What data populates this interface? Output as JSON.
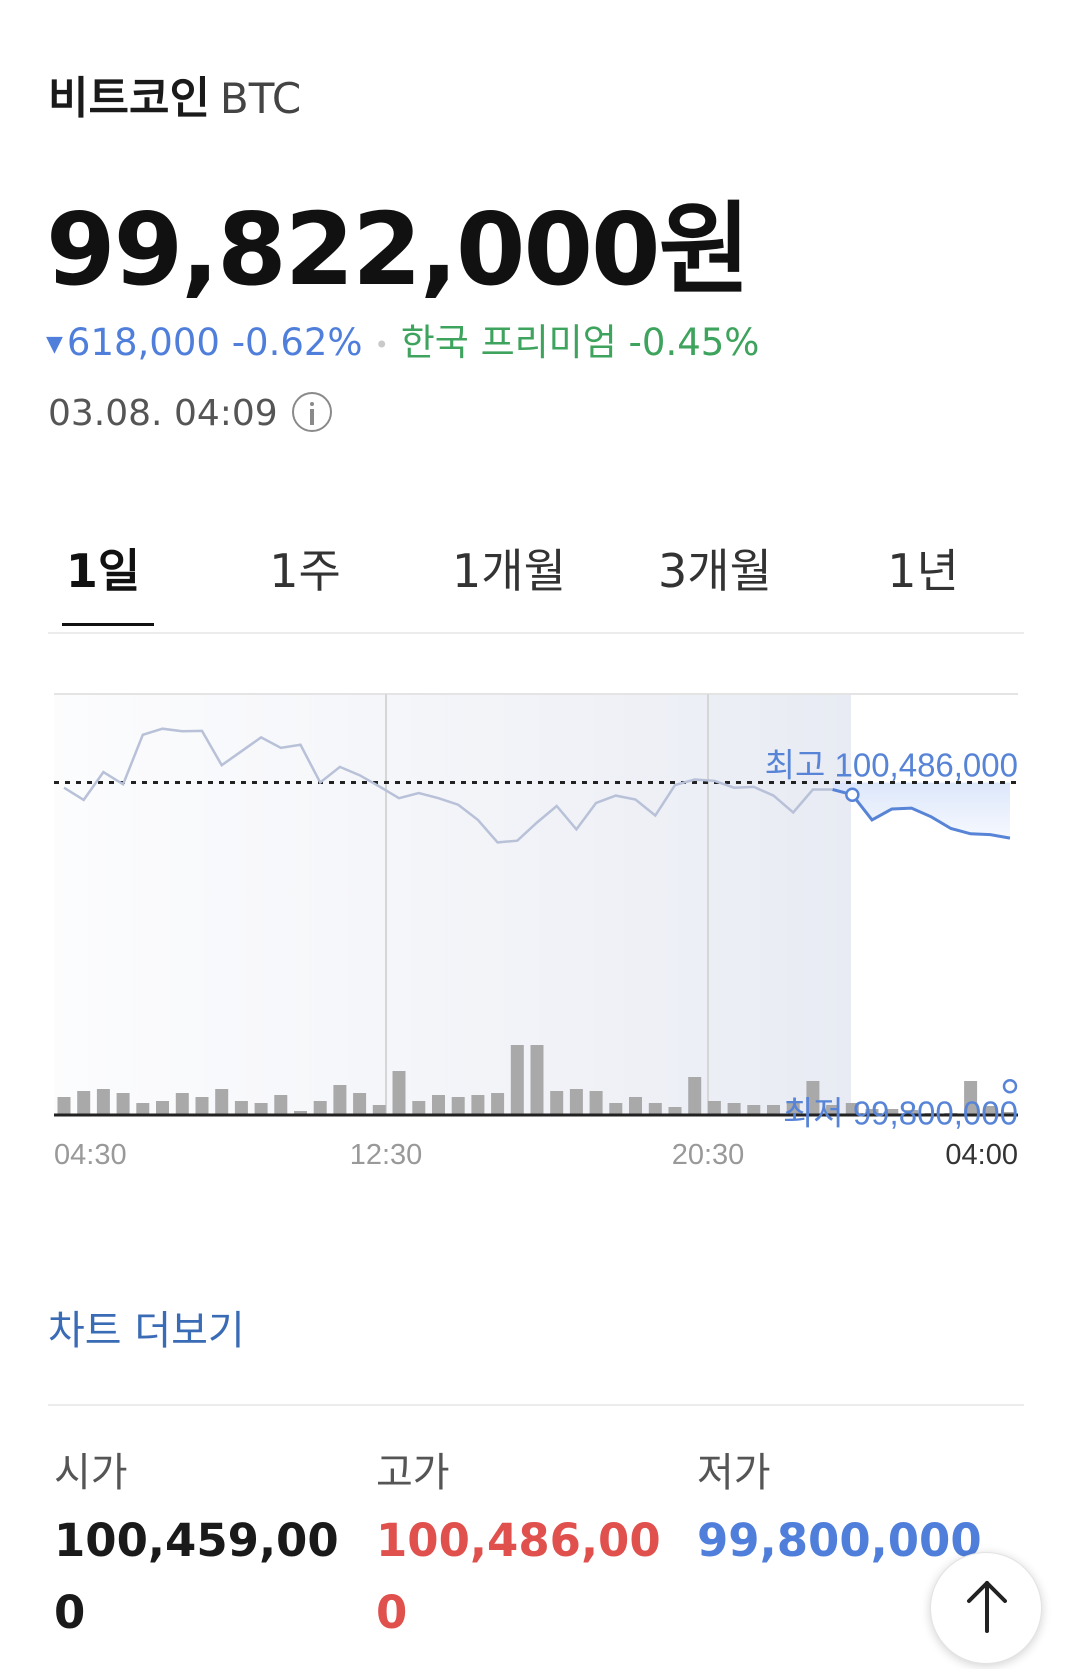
{
  "header": {
    "name": "비트코인",
    "symbol": "BTC",
    "price": "99,822,000원",
    "change_arrow": "▼",
    "change_amount": "618,000",
    "change_percent": "-0.62%",
    "premium_label": "한국 프리미엄",
    "premium_value": "-0.45%",
    "timestamp": "03.08. 04:09"
  },
  "tabs": [
    {
      "label": "1일",
      "active": true
    },
    {
      "label": "1주",
      "active": false
    },
    {
      "label": "1개월",
      "active": false
    },
    {
      "label": "3개월",
      "active": false
    },
    {
      "label": "1년",
      "active": false
    }
  ],
  "chart_data": {
    "type": "line",
    "x_ticks": [
      "04:30",
      "12:30",
      "20:30",
      "04:00"
    ],
    "high_label": "최고 100,486,000",
    "low_label": "최저 99,800,000",
    "high": 100486000,
    "low": 99800000,
    "ylim": [
      99720000,
      100690000
    ],
    "series": [
      {
        "values": [
          100474000,
          100446000,
          100510000,
          100482000,
          100596000,
          100610000,
          100604000,
          100605000,
          100526000,
          100558000,
          100590000,
          100566000,
          100573000,
          100486000,
          100522000,
          100503000,
          100477000,
          100450000,
          100462000,
          100450000,
          100435000,
          100400000,
          100348000,
          100352000,
          100394000,
          100432000,
          100378000,
          100439000,
          100456000,
          100447000,
          100410000,
          100480000,
          100493000,
          100490000,
          100474000,
          100476000,
          100456000,
          100417000,
          100470000,
          100470000,
          100458000,
          100400000,
          100425000,
          100427000,
          100407000,
          100380000,
          100368000,
          100366000,
          100358000
        ]
      }
    ],
    "volume": [
      18,
      24,
      26,
      22,
      12,
      14,
      22,
      18,
      26,
      14,
      12,
      20,
      4,
      14,
      30,
      22,
      10,
      44,
      14,
      20,
      18,
      20,
      22,
      70,
      70,
      24,
      26,
      24,
      12,
      18,
      12,
      8,
      38,
      14,
      12,
      10,
      10,
      12,
      34,
      10,
      12,
      6,
      6,
      5,
      2,
      2,
      34,
      9,
      3
    ]
  },
  "more_link": "차트 더보기",
  "stats": [
    {
      "label": "시가",
      "value": "100,459,000",
      "color": "#1a1a1a"
    },
    {
      "label": "고가",
      "value": "100,486,000",
      "color": "#e0504d"
    },
    {
      "label": "저가",
      "value": "99,800,000",
      "color": "#4f7fdb"
    }
  ],
  "colors": {
    "down": "#4f7fdb",
    "premium": "#3da35d",
    "high": "#e0504d",
    "link": "#3a6bb5"
  }
}
